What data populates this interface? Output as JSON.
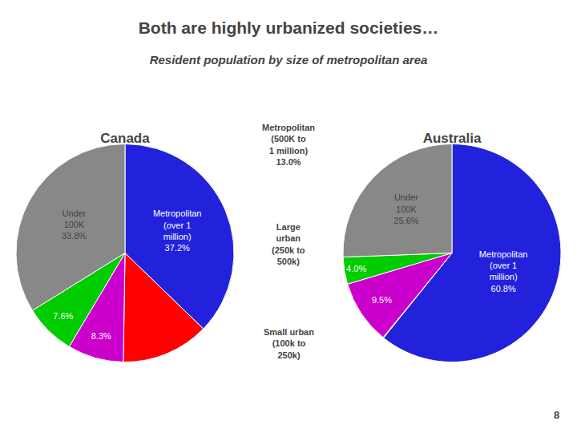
{
  "title": "Both are highly urbanized societies…",
  "subtitle": "Resident population by size of metropolitan area",
  "annotations": [
    "8"
  ],
  "chart_data": [
    {
      "type": "pie",
      "title": "Canada",
      "values": [
        37.2,
        13.0,
        8.3,
        7.6,
        33.8
      ],
      "colors": [
        "#2222dd",
        "#ff0000",
        "#cc00cc",
        "#00cc00",
        "#888888"
      ],
      "value_labels": [
        "Metropolitan\n(over 1\nmillion)\n37.2%",
        null,
        "8.3%",
        "7.6%",
        "Under\n100K\n33.8%"
      ],
      "annotations": [
        "Metropolitan\n(500K to\n1 million)\n13.0%",
        "Large\nurban\n(250k to\n500k)",
        "Small urban\n(100k to\n250k)"
      ]
    },
    {
      "type": "pie",
      "title": "Australia",
      "values": [
        60.8,
        0.1,
        9.5,
        4.0,
        25.6
      ],
      "colors": [
        "#2222dd",
        "#ff0000",
        "#cc00cc",
        "#00cc00",
        "#888888"
      ],
      "value_labels": [
        "Metropolitan\n(over 1\nmillion)\n60.8%",
        null,
        "9.5%",
        "4.0%",
        "Under\n100K\n25.6%"
      ]
    }
  ]
}
